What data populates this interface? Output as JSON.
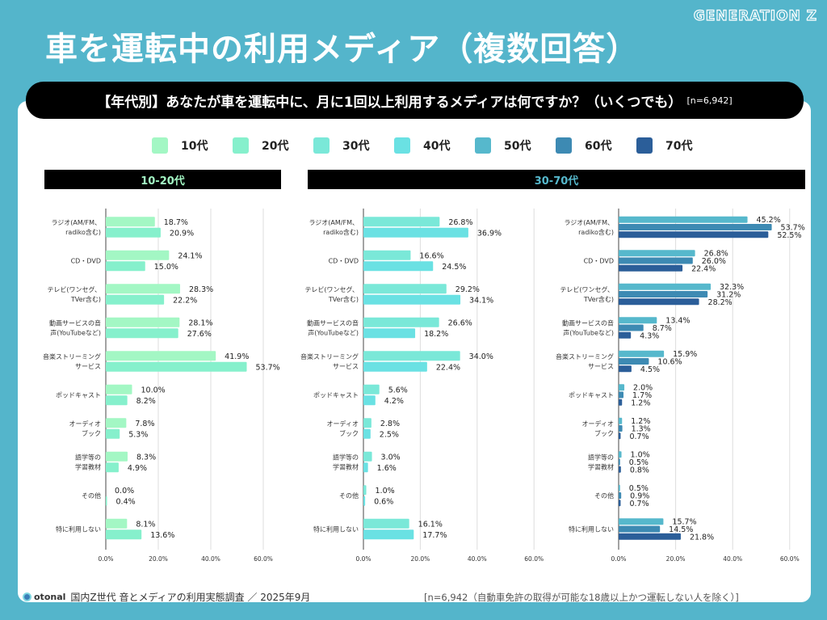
{
  "brand": "GENERATION Z",
  "title": "車を運転中の利用メディア（複数回答）",
  "question": "【年代別】あなたが車を運転中に、月に1回以上利用するメディアは何ですか？（いくつでも）",
  "question_n": "[n=6,942]",
  "footer": {
    "logo": "otonal",
    "source": "国内Z世代 音とメディアの利用実態調査 ／ 2025年9月",
    "note": "[n=6,942（自動車免許の取得が可能な18歳以上かつ運転しない人を除く）]"
  },
  "legend": [
    {
      "label": "10代",
      "color": "#a3f7c4"
    },
    {
      "label": "20代",
      "color": "#86f0cc"
    },
    {
      "label": "30代",
      "color": "#7ae8d8"
    },
    {
      "label": "40代",
      "color": "#6ae1e3"
    },
    {
      "label": "50代",
      "color": "#56b8cc"
    },
    {
      "label": "60代",
      "color": "#3d8ab3"
    },
    {
      "label": "70代",
      "color": "#2b5e99"
    }
  ],
  "panel_headers": [
    {
      "label": "10-20代",
      "color": "#a3f7c4"
    },
    {
      "label": "30-70代",
      "color": "#56b8cc"
    }
  ],
  "chart_data": {
    "type": "bar",
    "orientation": "horizontal",
    "categories": [
      "ラジオ(AM/FM、\nradiko含む)",
      "CD・DVD",
      "テレビ(ワンセグ、\nTVer含む)",
      "動画サービスの音\n声(YouTubeなど)",
      "音楽ストリーミング\nサービス",
      "ポッドキャスト",
      "オーディオ\nブック",
      "語学等の\n学習教材",
      "その他",
      "特に利用しない"
    ],
    "xlim": [
      0,
      60
    ],
    "xticks": [
      "0.0%",
      "20.0%",
      "40.0%",
      "60.0%"
    ],
    "grid": true,
    "unit": "%",
    "panels": [
      {
        "series": [
          "10代",
          "20代"
        ]
      },
      {
        "series": [
          "30代",
          "40代"
        ]
      },
      {
        "series": [
          "50代",
          "60代",
          "70代"
        ]
      }
    ],
    "series": [
      {
        "name": "10代",
        "values": [
          18.7,
          24.1,
          28.3,
          28.1,
          41.9,
          10.0,
          7.8,
          8.3,
          0.0,
          8.1
        ]
      },
      {
        "name": "20代",
        "values": [
          20.9,
          15.0,
          22.2,
          27.6,
          53.7,
          8.2,
          5.3,
          4.9,
          0.4,
          13.6
        ]
      },
      {
        "name": "30代",
        "values": [
          26.8,
          16.6,
          29.2,
          26.6,
          34.0,
          5.6,
          2.8,
          3.0,
          1.0,
          16.1
        ]
      },
      {
        "name": "40代",
        "values": [
          36.9,
          24.5,
          34.1,
          18.2,
          22.4,
          4.2,
          2.5,
          1.6,
          0.6,
          17.7
        ]
      },
      {
        "name": "50代",
        "values": [
          45.2,
          26.8,
          32.3,
          13.4,
          15.9,
          2.0,
          1.2,
          1.0,
          0.5,
          15.7
        ]
      },
      {
        "name": "60代",
        "values": [
          53.7,
          26.0,
          31.2,
          8.7,
          10.6,
          1.7,
          1.3,
          0.5,
          0.9,
          14.5
        ]
      },
      {
        "name": "70代",
        "values": [
          52.5,
          22.4,
          28.2,
          4.3,
          4.5,
          1.2,
          0.7,
          0.8,
          0.7,
          21.8
        ]
      }
    ]
  }
}
